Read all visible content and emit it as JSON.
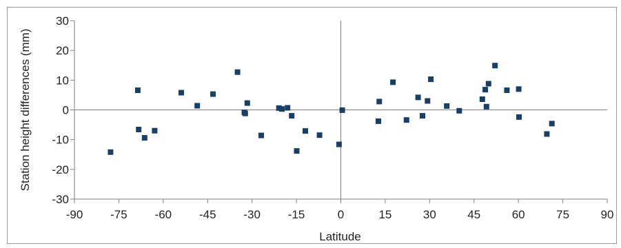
{
  "chart_data": {
    "type": "scatter",
    "xlabel": "Latitude",
    "ylabel": "Station height differences (mm)",
    "xlim": [
      -90,
      90
    ],
    "ylim": [
      -30,
      30
    ],
    "xticks": [
      "-90",
      "-75",
      "-60",
      "-45",
      "-30",
      "-15",
      "0",
      "15",
      "30",
      "45",
      "60",
      "75",
      "90"
    ],
    "yticks": [
      "30",
      "20",
      "10",
      "0",
      "-10",
      "-20",
      "-30"
    ],
    "grid": "none",
    "legend": "none",
    "marker_color": "#1a3f66",
    "axis_color": "#7f7f7f",
    "series": [
      {
        "values": [
          {
            "x": -77.8,
            "y": -14.2
          },
          {
            "x": -68.6,
            "y": 6.6
          },
          {
            "x": -68.3,
            "y": -6.6
          },
          {
            "x": -66.3,
            "y": -9.4
          },
          {
            "x": -62.9,
            "y": -7.0
          },
          {
            "x": -53.9,
            "y": 5.8
          },
          {
            "x": -48.5,
            "y": 1.4
          },
          {
            "x": -43.2,
            "y": 5.3
          },
          {
            "x": -34.9,
            "y": 12.7
          },
          {
            "x": -32.6,
            "y": -0.8
          },
          {
            "x": -32.3,
            "y": -1.2
          },
          {
            "x": -31.6,
            "y": 2.3
          },
          {
            "x": -26.9,
            "y": -8.6
          },
          {
            "x": -20.9,
            "y": 0.6
          },
          {
            "x": -19.9,
            "y": 0.3
          },
          {
            "x": -18.0,
            "y": 0.7
          },
          {
            "x": -16.6,
            "y": -2.0
          },
          {
            "x": -14.9,
            "y": -13.8
          },
          {
            "x": -12.0,
            "y": -7.1
          },
          {
            "x": -7.2,
            "y": -8.5
          },
          {
            "x": -0.6,
            "y": -11.6
          },
          {
            "x": 0.5,
            "y": -0.1
          },
          {
            "x": 12.7,
            "y": -3.8
          },
          {
            "x": 13.0,
            "y": 2.8
          },
          {
            "x": 17.6,
            "y": 9.3
          },
          {
            "x": 22.2,
            "y": -3.4
          },
          {
            "x": 26.1,
            "y": 4.2
          },
          {
            "x": 27.6,
            "y": -2.0
          },
          {
            "x": 29.3,
            "y": 3.0
          },
          {
            "x": 30.4,
            "y": 10.3
          },
          {
            "x": 35.8,
            "y": 1.3
          },
          {
            "x": 40.0,
            "y": -0.3
          },
          {
            "x": 47.8,
            "y": 3.6
          },
          {
            "x": 48.8,
            "y": 6.8
          },
          {
            "x": 49.2,
            "y": 1.1
          },
          {
            "x": 49.9,
            "y": 8.8
          },
          {
            "x": 52.1,
            "y": 14.9
          },
          {
            "x": 56.1,
            "y": 6.6
          },
          {
            "x": 60.1,
            "y": 7.0
          },
          {
            "x": 60.2,
            "y": -2.4
          },
          {
            "x": 69.6,
            "y": -8.1
          },
          {
            "x": 71.3,
            "y": -4.6
          }
        ]
      }
    ]
  }
}
